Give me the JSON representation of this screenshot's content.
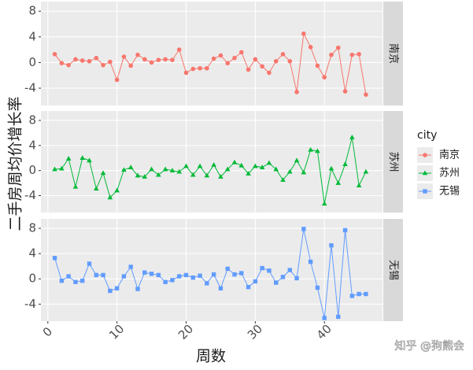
{
  "chart_data": {
    "type": "line",
    "xlabel": "周数",
    "ylabel": "二手房周均价增长率",
    "legend_title": "city",
    "watermark": "知乎 @狗熊会",
    "grid": true,
    "x": [
      1,
      2,
      3,
      4,
      5,
      6,
      7,
      8,
      9,
      10,
      11,
      12,
      13,
      14,
      15,
      16,
      17,
      18,
      19,
      20,
      21,
      22,
      23,
      24,
      25,
      26,
      27,
      28,
      29,
      30,
      31,
      32,
      33,
      34,
      35,
      36,
      37,
      38,
      39,
      40,
      41,
      42,
      43,
      44,
      45,
      46
    ],
    "xlim": [
      -1,
      48.4
    ],
    "xticks": [
      0,
      10,
      20,
      30,
      40
    ],
    "ylim": [
      -6.7,
      9.5
    ],
    "yticks": [
      -4,
      0,
      4,
      8
    ],
    "series": [
      {
        "name": "南京",
        "color": "#F8766D",
        "marker": "circle",
        "values": [
          1.3,
          -0.1,
          -0.4,
          0.5,
          0.3,
          0.2,
          0.7,
          -0.4,
          0.1,
          -2.7,
          0.9,
          -0.5,
          1.2,
          0.5,
          0,
          0.4,
          0.5,
          0.4,
          2.0,
          -1.6,
          -1.0,
          -0.9,
          -0.9,
          0.6,
          1.1,
          -0.1,
          0.7,
          1.6,
          -1.1,
          0.5,
          -0.6,
          -1.6,
          0.2,
          1.3,
          0.2,
          -4.6,
          4.5,
          2.4,
          -0.5,
          -2.3,
          1.2,
          2.3,
          -4.5,
          1.2,
          1.3,
          -5.0
        ]
      },
      {
        "name": "苏州",
        "color": "#00BA38",
        "marker": "triangle",
        "values": [
          0.2,
          0.3,
          1.9,
          -2.6,
          2.0,
          1.6,
          -2.9,
          -0.4,
          -4.3,
          -3.2,
          0.1,
          0.5,
          -0.8,
          -1.0,
          0.2,
          -0.7,
          0.2,
          0.0,
          -0.2,
          0.7,
          -0.7,
          0.7,
          -0.8,
          0.9,
          -1.0,
          0.2,
          1.3,
          0.8,
          -0.5,
          0.7,
          0.5,
          1.2,
          0.2,
          -1.5,
          -0.2,
          1.6,
          -0.3,
          3.3,
          3.1,
          -5.3,
          0.3,
          -2.0,
          1.0,
          5.3,
          -2.4,
          -0.2
        ]
      },
      {
        "name": "无锡",
        "color": "#619CFF",
        "marker": "square",
        "values": [
          3.3,
          -0.3,
          0.4,
          -0.5,
          -0.3,
          2.4,
          0.6,
          0.6,
          -1.9,
          -1.5,
          0.4,
          1.9,
          -1.6,
          1.0,
          0.8,
          0.6,
          -0.5,
          -0.2,
          0.4,
          0.6,
          0.2,
          0.5,
          -0.7,
          0.7,
          -1.5,
          1.6,
          0.7,
          0.9,
          -1.3,
          -0.4,
          1.7,
          1.3,
          -0.6,
          0.3,
          1.4,
          0.1,
          7.9,
          2.7,
          -1.4,
          -6.2,
          5.3,
          -6.0,
          7.7,
          -2.7,
          -2.4,
          -2.4
        ]
      }
    ]
  }
}
